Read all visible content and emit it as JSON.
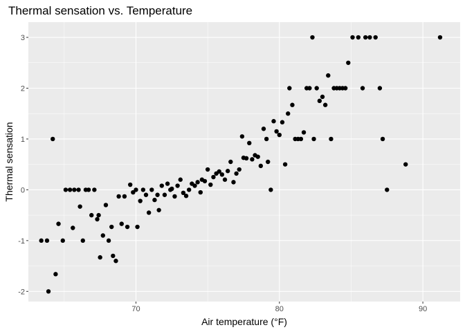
{
  "chart_data": {
    "type": "scatter",
    "title": "Thermal sensation vs. Temperature",
    "xlabel": "Air temperature (°F)",
    "ylabel": "Thermal sensation",
    "xlim": [
      62.5,
      92.6
    ],
    "ylim": [
      -2.2,
      3.3
    ],
    "x_ticks": [
      70,
      80,
      90
    ],
    "x_minor_ticks": [
      65,
      75,
      85
    ],
    "y_ticks": [
      -2,
      -1,
      0,
      1,
      2,
      3
    ],
    "y_minor_ticks": [
      -1.5,
      -0.5,
      0.5,
      1.5,
      2.5
    ],
    "grid": true,
    "panel_color": "#ebebeb",
    "grid_color": "#ffffff",
    "point_color": "#000000",
    "points": [
      [
        63.4,
        -1
      ],
      [
        63.8,
        -1
      ],
      [
        63.9,
        -2
      ],
      [
        64.2,
        1
      ],
      [
        64.4,
        -1.66
      ],
      [
        64.6,
        -0.67
      ],
      [
        64.9,
        -1
      ],
      [
        65.1,
        0
      ],
      [
        65.4,
        0
      ],
      [
        65.6,
        -0.75
      ],
      [
        65.7,
        0
      ],
      [
        66,
        0
      ],
      [
        66.1,
        -0.33
      ],
      [
        66.3,
        -1
      ],
      [
        66.5,
        0
      ],
      [
        66.7,
        0
      ],
      [
        66.9,
        -0.5
      ],
      [
        67.1,
        0
      ],
      [
        67.3,
        -0.58
      ],
      [
        67.4,
        -0.5
      ],
      [
        67.5,
        -1.33
      ],
      [
        67.7,
        -0.9
      ],
      [
        67.9,
        -0.3
      ],
      [
        68.1,
        -1
      ],
      [
        68.3,
        -0.73
      ],
      [
        68.4,
        -1.3
      ],
      [
        68.6,
        -1.4
      ],
      [
        68.8,
        -0.13
      ],
      [
        69,
        -0.67
      ],
      [
        69.2,
        -0.13
      ],
      [
        69.4,
        -0.73
      ],
      [
        69.6,
        0.1
      ],
      [
        69.8,
        -0.05
      ],
      [
        70,
        0
      ],
      [
        70.1,
        -0.73
      ],
      [
        70.3,
        -0.22
      ],
      [
        70.5,
        0
      ],
      [
        70.7,
        -0.1
      ],
      [
        70.9,
        -0.45
      ],
      [
        71.1,
        0
      ],
      [
        71.3,
        -0.2
      ],
      [
        71.5,
        -0.1
      ],
      [
        71.6,
        -0.4
      ],
      [
        71.8,
        0.08
      ],
      [
        72,
        -0.1
      ],
      [
        72.2,
        0.12
      ],
      [
        72.4,
        0
      ],
      [
        72.5,
        0.02
      ],
      [
        72.7,
        -0.13
      ],
      [
        72.9,
        0.08
      ],
      [
        73.1,
        0.2
      ],
      [
        73.3,
        -0.06
      ],
      [
        73.5,
        -0.12
      ],
      [
        73.7,
        0
      ],
      [
        73.9,
        0.12
      ],
      [
        74.1,
        0.08
      ],
      [
        74.3,
        0.15
      ],
      [
        74.5,
        -0.05
      ],
      [
        74.6,
        0.2
      ],
      [
        74.8,
        0.17
      ],
      [
        75,
        0.4
      ],
      [
        75.2,
        0.1
      ],
      [
        75.4,
        0.25
      ],
      [
        75.6,
        0.32
      ],
      [
        75.8,
        0.36
      ],
      [
        76,
        0.3
      ],
      [
        76.2,
        0.2
      ],
      [
        76.4,
        0.37
      ],
      [
        76.6,
        0.55
      ],
      [
        76.8,
        0.15
      ],
      [
        77,
        0.32
      ],
      [
        77.2,
        0.4
      ],
      [
        77.4,
        1.05
      ],
      [
        77.5,
        0.63
      ],
      [
        77.7,
        0.62
      ],
      [
        77.9,
        0.92
      ],
      [
        78.1,
        0.6
      ],
      [
        78.3,
        0.68
      ],
      [
        78.5,
        0.65
      ],
      [
        78.7,
        0.47
      ],
      [
        78.9,
        1.2
      ],
      [
        79.1,
        1
      ],
      [
        79.2,
        0.55
      ],
      [
        79.4,
        0
      ],
      [
        79.6,
        1.35
      ],
      [
        79.8,
        1.15
      ],
      [
        80,
        1.08
      ],
      [
        80.2,
        1.33
      ],
      [
        80.4,
        0.5
      ],
      [
        80.6,
        1.5
      ],
      [
        80.7,
        2
      ],
      [
        80.9,
        1.67
      ],
      [
        81.1,
        1
      ],
      [
        81.3,
        1
      ],
      [
        81.5,
        1
      ],
      [
        81.7,
        1.13
      ],
      [
        81.9,
        2
      ],
      [
        82.1,
        2
      ],
      [
        82.3,
        3
      ],
      [
        82.4,
        1
      ],
      [
        82.6,
        2
      ],
      [
        82.8,
        1.75
      ],
      [
        83,
        1.83
      ],
      [
        83.2,
        1.67
      ],
      [
        83.4,
        2.25
      ],
      [
        83.6,
        1
      ],
      [
        83.8,
        2
      ],
      [
        84,
        2
      ],
      [
        84.2,
        2
      ],
      [
        84.4,
        2
      ],
      [
        84.6,
        2
      ],
      [
        84.8,
        2.5
      ],
      [
        85.1,
        3
      ],
      [
        85.5,
        3
      ],
      [
        85.8,
        2
      ],
      [
        86,
        3
      ],
      [
        86.3,
        3
      ],
      [
        86.7,
        3
      ],
      [
        87,
        2
      ],
      [
        87.2,
        1
      ],
      [
        87.5,
        0
      ],
      [
        88.8,
        0.5
      ],
      [
        91.2,
        3
      ]
    ]
  }
}
